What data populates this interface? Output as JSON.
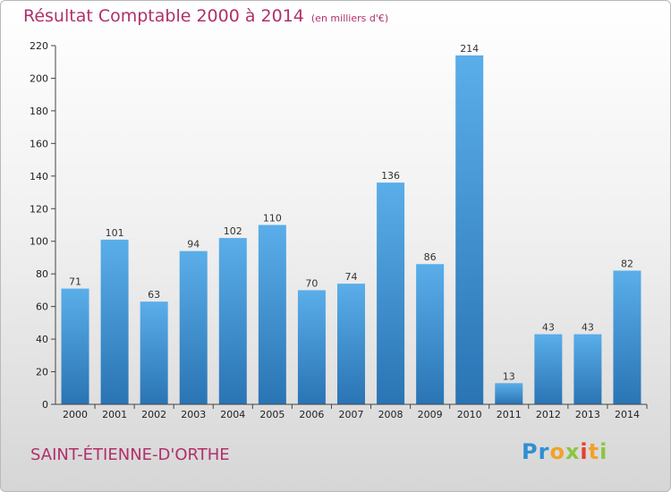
{
  "title": "Résultat Comptable 2000 à 2014",
  "subtitle": "(en milliers d'€)",
  "commune": "SAINT-ÉTIENNE-D'ORTHE",
  "logo_text": "Proxiti",
  "colors": {
    "bar_light": "#5aaee9",
    "bar_dark": "#2a74b4",
    "title": "#b0306b"
  },
  "chart_data": {
    "type": "bar",
    "title": "Résultat Comptable 2000 à 2014",
    "subtitle": "(en milliers d'€)",
    "categories": [
      "2000",
      "2001",
      "2002",
      "2003",
      "2004",
      "2005",
      "2006",
      "2007",
      "2008",
      "2009",
      "2010",
      "2011",
      "2012",
      "2013",
      "2014"
    ],
    "values": [
      71,
      101,
      63,
      94,
      102,
      110,
      70,
      74,
      136,
      86,
      214,
      13,
      43,
      43,
      82
    ],
    "ylim": [
      0,
      220
    ],
    "yticks": [
      0,
      20,
      40,
      60,
      80,
      100,
      120,
      140,
      160,
      180,
      200,
      220
    ],
    "grid": false,
    "data_labels": true
  }
}
